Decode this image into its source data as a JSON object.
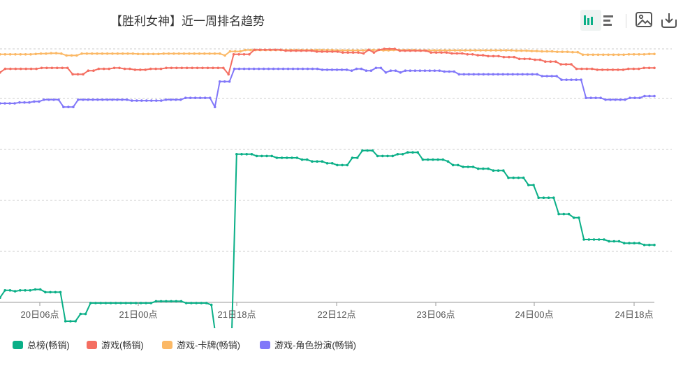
{
  "title": "【胜利女神】近一周排名趋势",
  "toolbar": {
    "view_mode": "chart",
    "buttons": [
      "chart-view-icon",
      "list-view-icon",
      "save-image-icon",
      "download-icon"
    ]
  },
  "colors": {
    "accent_active_bg": "#e6f0ee",
    "grid": "#cccccc",
    "axis": "#999999",
    "tick_text": "#555555"
  },
  "chart_data": {
    "type": "line",
    "x_tick_labels": [
      "20日06点",
      "21日00点",
      "21日18点",
      "22日12点",
      "23日06点",
      "24日00点",
      "24日18点"
    ],
    "grid": true,
    "legend_position": "bottom-left",
    "y_axis_labels_visible": false,
    "series": [
      {
        "name": "总榜(畅销)",
        "color": "#0aaf87",
        "values": [
          137,
          133,
          133,
          133.5,
          133,
          133,
          133,
          132.5,
          132.5,
          134,
          134,
          134,
          134,
          150,
          150,
          150,
          146,
          146,
          140,
          140,
          140,
          140,
          140,
          140,
          140,
          140,
          140,
          140,
          140,
          140,
          140,
          139,
          139,
          139,
          139,
          139,
          139,
          140,
          140,
          140,
          140,
          140,
          141,
          161,
          161,
          161,
          161,
          58,
          58,
          58,
          58,
          59,
          59,
          59,
          59,
          60,
          60,
          60,
          60,
          60,
          61,
          61,
          62,
          62,
          62,
          63,
          63,
          64,
          64,
          64,
          60,
          60,
          56,
          56,
          56,
          59,
          59,
          59,
          59,
          58,
          58,
          57,
          57,
          57,
          61,
          61,
          61,
          61,
          61,
          62,
          64,
          64,
          65,
          65,
          65,
          66,
          66,
          66,
          67,
          67,
          67,
          71,
          71,
          71,
          71,
          75,
          75,
          82,
          82,
          82,
          82,
          91,
          91,
          91,
          93,
          93,
          105,
          105,
          105,
          105,
          105,
          106,
          106,
          106,
          107,
          107,
          107,
          107,
          108,
          108,
          108
        ]
      },
      {
        "name": "游戏(畅销)",
        "color": "#f46e61",
        "values": [
          13,
          11,
          11,
          11,
          11,
          11,
          11,
          11,
          10.5,
          10.5,
          10.5,
          10.5,
          10.5,
          10.5,
          14,
          14,
          14,
          12,
          12,
          11,
          11,
          11,
          10.5,
          10.5,
          11,
          11,
          11.5,
          11.5,
          11.5,
          11,
          11,
          11,
          10.5,
          10.5,
          10.5,
          10.5,
          10.5,
          10.5,
          10.5,
          10.5,
          10.5,
          10.5,
          10.5,
          10.5,
          14,
          3,
          3,
          3,
          3,
          0.5,
          0.5,
          0.5,
          0.5,
          0.5,
          0.5,
          1,
          1,
          1,
          1,
          1,
          1,
          1.5,
          1.5,
          1.5,
          1.5,
          1.5,
          2,
          2,
          2,
          2,
          2.5,
          0.5,
          2,
          0.5,
          0,
          0,
          0,
          1,
          1,
          1,
          1,
          1,
          1,
          2,
          2,
          2,
          2,
          2.5,
          2.5,
          2.5,
          3,
          3,
          3.5,
          3.5,
          4,
          4,
          4,
          4.5,
          4.5,
          4.5,
          5.5,
          5.5,
          5.5,
          6,
          6,
          7,
          7,
          7,
          8.5,
          8.5,
          8.5,
          11,
          11,
          11,
          11,
          11.5,
          11.5,
          11.5,
          11.5,
          11.5,
          11.5,
          11,
          11,
          11,
          10.5,
          10.5,
          10.5
        ]
      },
      {
        "name": "游戏-卡牌(畅销)",
        "color": "#fbb865",
        "values": [
          3,
          3,
          3,
          3,
          3,
          3,
          3,
          2.8,
          2.6,
          2.6,
          2.4,
          2.4,
          2.6,
          3.6,
          3.6,
          3.6,
          2.6,
          2.6,
          2.6,
          2.6,
          2.6,
          2.6,
          2.6,
          2.6,
          2.6,
          2.6,
          2.6,
          2.8,
          2.8,
          2.8,
          2.8,
          2.8,
          2.6,
          2.6,
          2.6,
          2.6,
          2.6,
          2.6,
          2.6,
          2.6,
          2.6,
          2.6,
          2.6,
          2.6,
          3.6,
          1.4,
          1.4,
          1.4,
          0.6,
          0.6,
          0.6,
          0.6,
          0.6,
          0.6,
          0.6,
          0.6,
          0.6,
          0.6,
          0.6,
          0.6,
          0.6,
          0.6,
          0.6,
          0.6,
          0.6,
          0.6,
          0.8,
          0.8,
          0.8,
          0.8,
          0.8,
          0.8,
          0.6,
          0.6,
          0.6,
          0.8,
          0.8,
          0.6,
          0.6,
          0.6,
          0.6,
          0.6,
          0.8,
          0.8,
          0.8,
          0.8,
          0.8,
          0.8,
          0.8,
          0.8,
          0.8,
          0.8,
          0.8,
          0.8,
          0.8,
          0.8,
          0.8,
          0.8,
          0.8,
          0.8,
          0.8,
          1,
          1,
          1,
          1.2,
          1.2,
          1.4,
          1.4,
          1.4,
          1.6,
          1.6,
          1.6,
          1.8,
          1.8,
          3.2,
          3.2,
          3.2,
          3.2,
          3.2,
          3.2,
          3.2,
          3.2,
          3.2,
          3,
          3,
          3,
          3,
          2.8,
          2.8
        ]
      },
      {
        "name": "游戏-角色扮演(畅销)",
        "color": "#8177f9",
        "values": [
          30,
          30,
          30,
          30,
          29.5,
          29.5,
          29.5,
          29,
          29,
          28,
          28,
          28,
          28,
          32,
          32,
          32,
          28,
          28,
          28,
          28,
          28,
          28,
          28,
          28,
          28,
          28,
          28,
          28.5,
          28.5,
          28.5,
          28.5,
          28.5,
          28.5,
          28.5,
          28,
          28,
          28,
          28,
          27,
          27,
          27,
          27,
          27,
          27,
          32,
          18,
          18,
          18,
          11,
          11,
          11,
          11,
          11,
          11,
          11,
          11,
          11,
          11,
          11,
          11,
          11,
          11,
          11,
          11,
          11,
          11,
          11.5,
          11.5,
          11.5,
          11.5,
          11.5,
          11.5,
          12,
          11,
          11,
          12,
          12,
          10.5,
          10.5,
          13,
          12,
          12,
          13,
          12,
          12,
          12,
          12,
          12,
          12,
          12,
          12,
          12.5,
          12.5,
          12.5,
          14,
          14,
          14,
          14,
          14,
          14,
          14,
          14,
          14,
          14,
          14,
          14,
          14,
          14,
          14,
          14,
          14,
          15,
          15,
          15,
          15,
          17,
          17,
          17,
          17,
          17,
          27,
          27,
          27,
          27,
          28,
          28,
          28,
          28,
          28,
          27,
          27,
          27,
          26,
          26,
          26
        ]
      }
    ]
  }
}
